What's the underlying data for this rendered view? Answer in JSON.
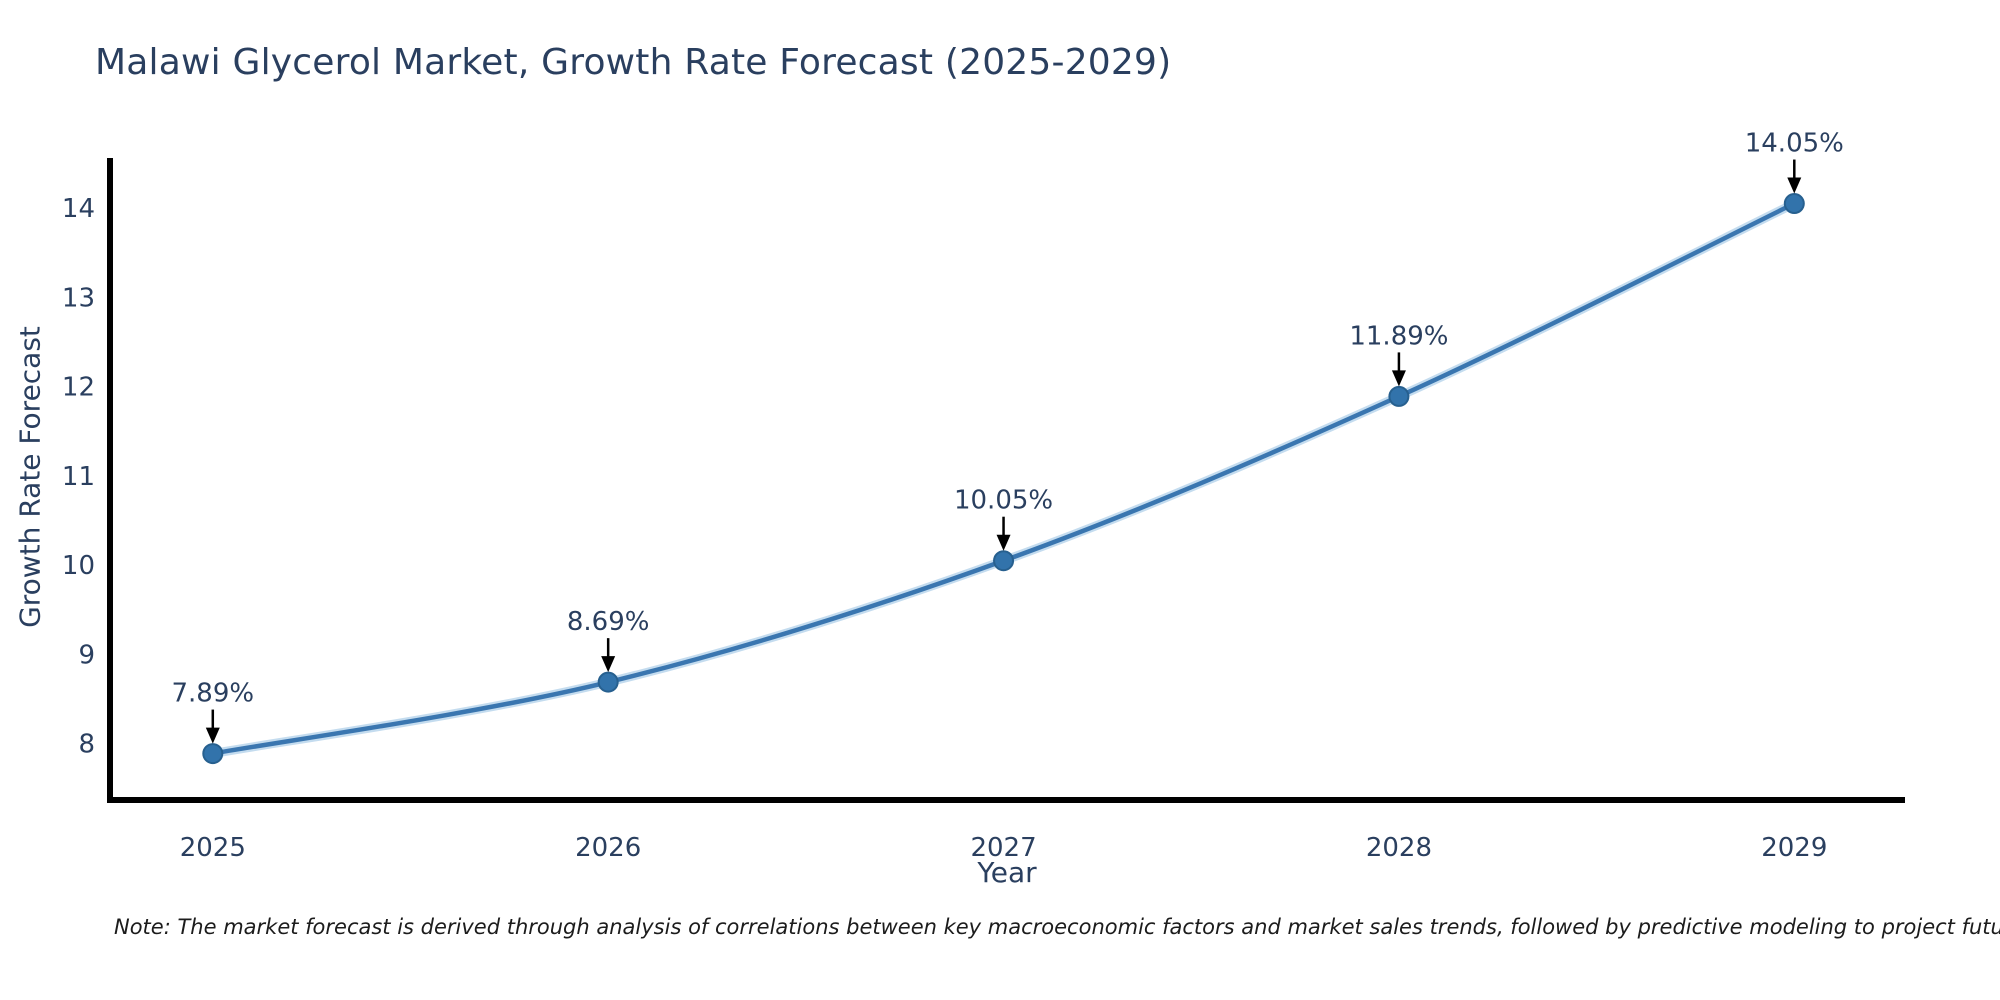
{
  "footer": {
    "note": "Note: The market forecast is derived through analysis of correlations between key macroeconomic factors and market sales trends, followed by predictive modeling to project future sales."
  },
  "chart_data": {
    "type": "line",
    "title": "Malawi Glycerol Market, Growth Rate Forecast (2025-2029)",
    "xlabel": "Year",
    "ylabel": "Growth Rate Forecast",
    "x": [
      2025,
      2026,
      2027,
      2028,
      2029
    ],
    "series": [
      {
        "name": "Growth Rate Forecast",
        "values": [
          7.89,
          8.69,
          10.05,
          11.89,
          14.05
        ]
      }
    ],
    "point_labels": [
      "7.89%",
      "8.69%",
      "10.05%",
      "11.89%",
      "14.05%"
    ],
    "xticks": [
      "2025",
      "2026",
      "2027",
      "2028",
      "2029"
    ],
    "yticks": [
      8,
      9,
      10,
      11,
      12,
      13,
      14
    ],
    "xlim": [
      2024.74,
      2029.28
    ],
    "ylim": [
      7.37,
      14.56
    ],
    "grid": false,
    "legend": "none",
    "annotation_style": "black down-arrow from label to marker",
    "colors": {
      "background": "#ffffff",
      "text": "#2a3f5f",
      "axis": "#000000",
      "line": "#3a76b0",
      "line_halo": "#c4dcef",
      "marker_fill": "#3273ab",
      "marker_edge": "#27608f",
      "arrow": "#000000",
      "note_text": "#1c1c1c"
    }
  }
}
